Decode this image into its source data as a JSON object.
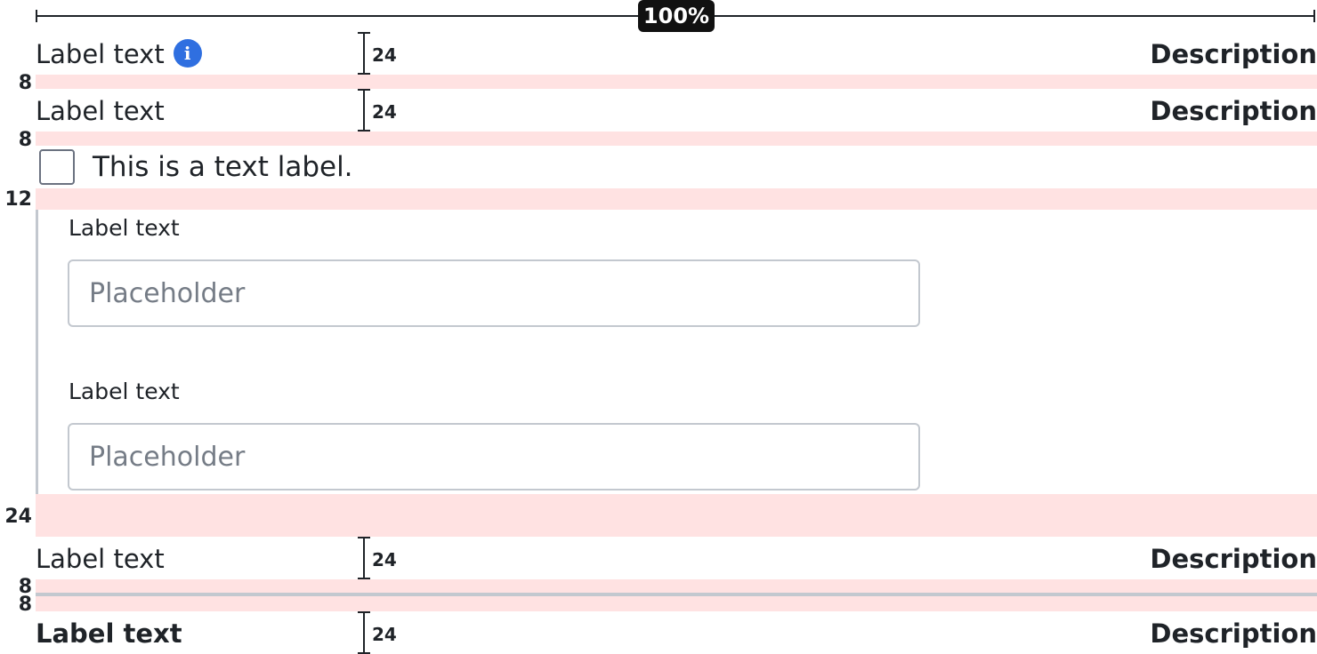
{
  "ruler": {
    "percent": "100%"
  },
  "spacers": {
    "s1": "8",
    "s2": "8",
    "s3": "12",
    "s4": "24",
    "s5a": "8",
    "s5b": "8"
  },
  "rows": [
    {
      "label": "Label text",
      "measure": "24",
      "description": "Description",
      "has_info": true
    },
    {
      "label": "Label text",
      "measure": "24",
      "description": "Description"
    },
    {
      "label": "Label text",
      "measure": "24",
      "description": "Description"
    },
    {
      "label": "Label text",
      "measure": "24",
      "description": "Description",
      "bold": true
    }
  ],
  "checkbox": {
    "label": "This is a text label.",
    "checked": false
  },
  "fields": [
    {
      "label": "Label text",
      "placeholder": "Placeholder"
    },
    {
      "label": "Label text",
      "placeholder": "Placeholder"
    }
  ],
  "colors": {
    "spacer": "#ffe2e2",
    "info": "#2f6fe0",
    "border": "#c3c8cf"
  },
  "icons": {
    "info": "info-icon"
  }
}
